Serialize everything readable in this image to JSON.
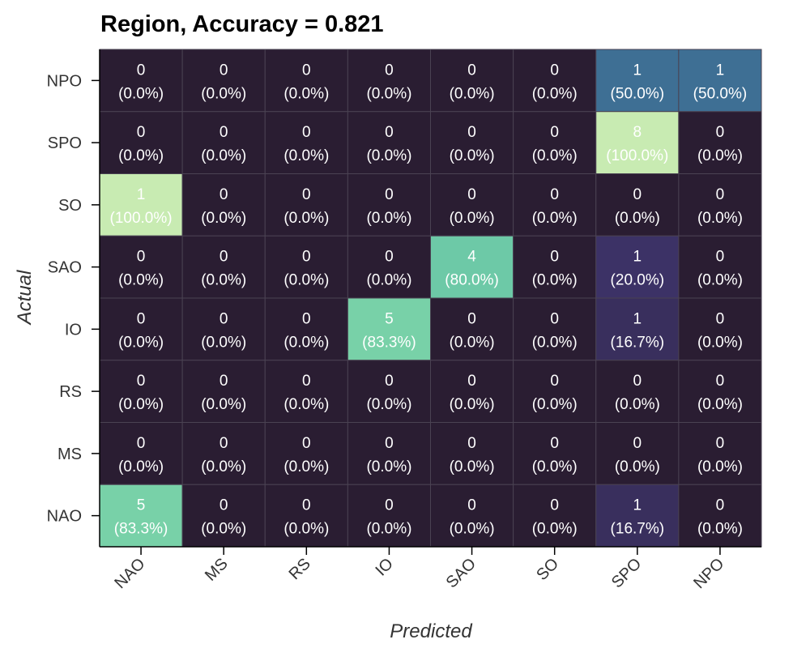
{
  "chart_data": {
    "type": "heatmap",
    "title": "Region, Accuracy = 0.821",
    "xlabel": "Predicted",
    "ylabel": "Actual",
    "x_categories": [
      "NAO",
      "MS",
      "RS",
      "IO",
      "SAO",
      "SO",
      "SPO",
      "NPO"
    ],
    "y_categories": [
      "NPO",
      "SPO",
      "SO",
      "SAO",
      "IO",
      "RS",
      "MS",
      "NAO"
    ],
    "counts": [
      [
        0,
        0,
        0,
        0,
        0,
        0,
        1,
        1
      ],
      [
        0,
        0,
        0,
        0,
        0,
        0,
        8,
        0
      ],
      [
        1,
        0,
        0,
        0,
        0,
        0,
        0,
        0
      ],
      [
        0,
        0,
        0,
        0,
        4,
        0,
        1,
        0
      ],
      [
        0,
        0,
        0,
        5,
        0,
        0,
        1,
        0
      ],
      [
        0,
        0,
        0,
        0,
        0,
        0,
        0,
        0
      ],
      [
        0,
        0,
        0,
        0,
        0,
        0,
        0,
        0
      ],
      [
        5,
        0,
        0,
        0,
        0,
        0,
        1,
        0
      ]
    ],
    "percent_labels": [
      [
        "(0.0%)",
        "(0.0%)",
        "(0.0%)",
        "(0.0%)",
        "(0.0%)",
        "(0.0%)",
        "(50.0%)",
        "(50.0%)"
      ],
      [
        "(0.0%)",
        "(0.0%)",
        "(0.0%)",
        "(0.0%)",
        "(0.0%)",
        "(0.0%)",
        "(100.0%)",
        "(0.0%)"
      ],
      [
        "(100.0%)",
        "(0.0%)",
        "(0.0%)",
        "(0.0%)",
        "(0.0%)",
        "(0.0%)",
        "(0.0%)",
        "(0.0%)"
      ],
      [
        "(0.0%)",
        "(0.0%)",
        "(0.0%)",
        "(0.0%)",
        "(80.0%)",
        "(0.0%)",
        "(20.0%)",
        "(0.0%)"
      ],
      [
        "(0.0%)",
        "(0.0%)",
        "(0.0%)",
        "(83.3%)",
        "(0.0%)",
        "(0.0%)",
        "(16.7%)",
        "(0.0%)"
      ],
      [
        "(0.0%)",
        "(0.0%)",
        "(0.0%)",
        "(0.0%)",
        "(0.0%)",
        "(0.0%)",
        "(0.0%)",
        "(0.0%)"
      ],
      [
        "(0.0%)",
        "(0.0%)",
        "(0.0%)",
        "(0.0%)",
        "(0.0%)",
        "(0.0%)",
        "(0.0%)",
        "(0.0%)"
      ],
      [
        "(83.3%)",
        "(0.0%)",
        "(0.0%)",
        "(0.0%)",
        "(0.0%)",
        "(0.0%)",
        "(16.7%)",
        "(0.0%)"
      ]
    ],
    "row_fraction": [
      [
        0.0,
        0.0,
        0.0,
        0.0,
        0.0,
        0.0,
        0.5,
        0.5
      ],
      [
        0.0,
        0.0,
        0.0,
        0.0,
        0.0,
        0.0,
        1.0,
        0.0
      ],
      [
        1.0,
        0.0,
        0.0,
        0.0,
        0.0,
        0.0,
        0.0,
        0.0
      ],
      [
        0.0,
        0.0,
        0.0,
        0.0,
        0.8,
        0.0,
        0.2,
        0.0
      ],
      [
        0.0,
        0.0,
        0.0,
        0.833,
        0.0,
        0.0,
        0.167,
        0.0
      ],
      [
        0.0,
        0.0,
        0.0,
        0.0,
        0.0,
        0.0,
        0.0,
        0.0
      ],
      [
        0.0,
        0.0,
        0.0,
        0.0,
        0.0,
        0.0,
        0.0,
        0.0
      ],
      [
        0.833,
        0.0,
        0.0,
        0.0,
        0.0,
        0.0,
        0.167,
        0.0
      ]
    ],
    "colormap": "mako",
    "colorbar": false,
    "grid": true
  }
}
